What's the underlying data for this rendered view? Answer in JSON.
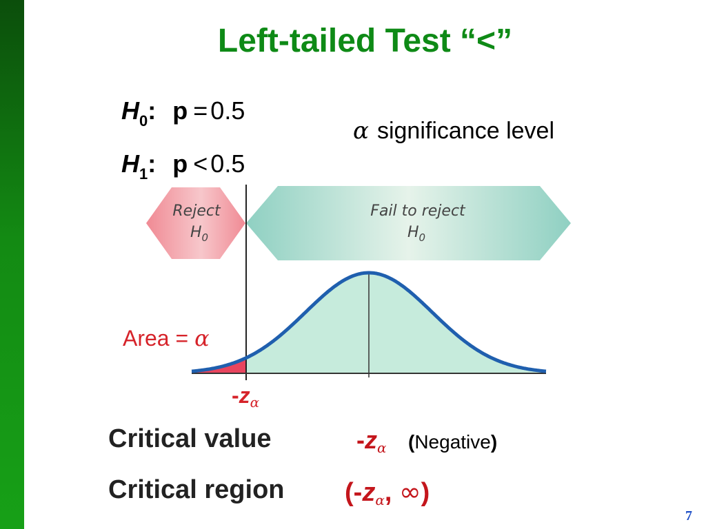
{
  "title": "Left-tailed Test “<”",
  "hypotheses": {
    "null": {
      "letter": "H",
      "sub": "0",
      "colon": ":",
      "param": "p",
      "relation": "=",
      "value": "0.5"
    },
    "alt": {
      "letter": "H",
      "sub": "1",
      "colon": ":",
      "param": "p",
      "relation": "<",
      "value": "0.5"
    }
  },
  "alpha_note": {
    "symbol": "α",
    "text": "significance level"
  },
  "diagram": {
    "reject_label": [
      "Reject",
      "H"
    ],
    "reject_sub": "0",
    "fail_label": [
      "Fail to reject",
      "H"
    ],
    "fail_sub": "0",
    "area_label": {
      "text": "Area = ",
      "symbol": "α"
    },
    "critical_tick": {
      "prefix": "-",
      "z": "z",
      "sub": "α"
    },
    "colors": {
      "reject": "#f08a94",
      "fail": "#8fd0c2",
      "curve": "#1f5fae",
      "fill": "#c6ebdc",
      "tail": "#e8455e"
    }
  },
  "critical_value": {
    "label": "Critical value",
    "prefix": "-",
    "z": "z",
    "sub": "α",
    "note_open": "(",
    "note_text": "Negative",
    "note_close": ")"
  },
  "critical_region": {
    "label": "Critical region",
    "open": "(-",
    "z": "z",
    "sub": "α",
    "sep": ", ",
    "inf": "∞",
    "close": ")"
  },
  "page_number": "7"
}
